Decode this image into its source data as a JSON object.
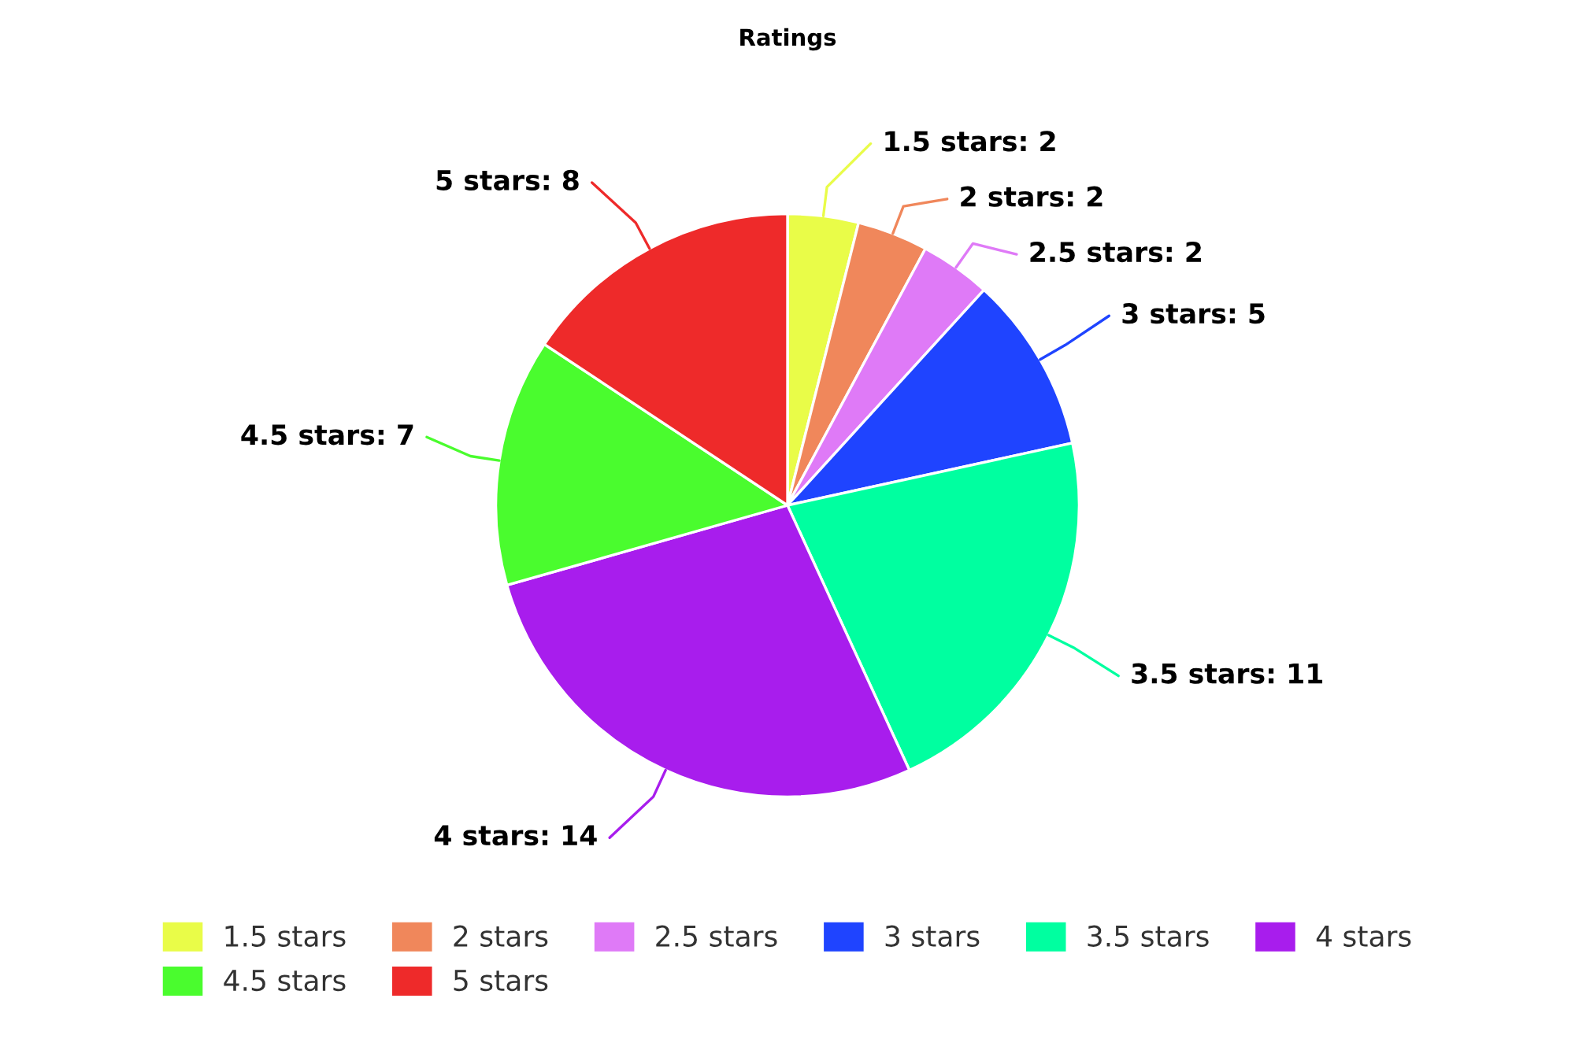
{
  "chart_data": {
    "type": "pie",
    "title": "Ratings",
    "categories": [
      "1.5 stars",
      "2 stars",
      "2.5 stars",
      "3 stars",
      "3.5 stars",
      "4 stars",
      "4.5 stars",
      "5 stars"
    ],
    "values": [
      2,
      2,
      2,
      5,
      11,
      14,
      7,
      8
    ],
    "colors": [
      "#e9fc48",
      "#f0875b",
      "#df7af7",
      "#1f44ff",
      "#00ffa0",
      "#a81ded",
      "#4afc2e",
      "#ee2a2a"
    ],
    "value_labels": [
      "1.5 stars: 2",
      "2 stars: 2",
      "2.5 stars: 2",
      "3 stars: 5",
      "3.5 stars: 11",
      "4 stars: 14",
      "4.5 stars: 7",
      "5 stars: 8"
    ],
    "legend": "bottom"
  }
}
